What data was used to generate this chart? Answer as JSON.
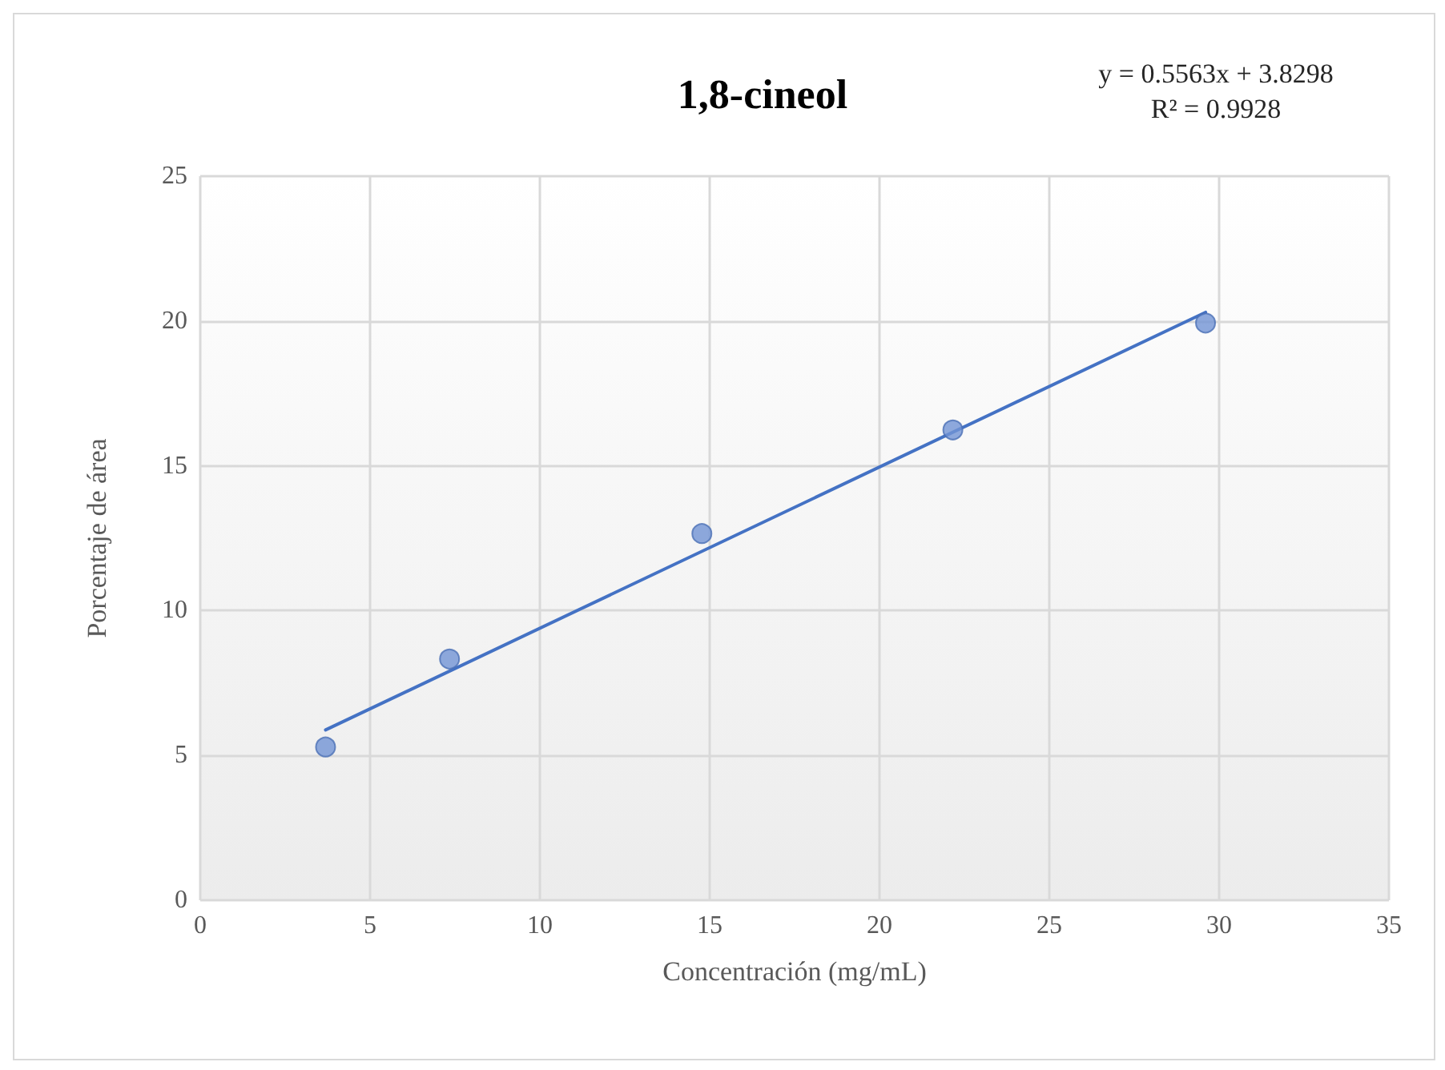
{
  "chart_data": {
    "type": "scatter",
    "title": "1,8-cineol",
    "xlabel": "Concentración (mg/mL)",
    "ylabel": "Porcentaje de área",
    "annotations": [
      "y = 0.5563x + 3.8298\nR² = 0.9928"
    ],
    "series": [
      {
        "type": "scatter",
        "color": "#7294d4",
        "x": [
          3.69,
          7.34,
          14.77,
          22.16,
          29.6
        ],
        "values": [
          5.29,
          8.33,
          12.66,
          16.24,
          19.93
        ],
        "marker": "circle"
      },
      {
        "type": "line",
        "color": "#4472c4",
        "x": [
          3.69,
          29.6
        ],
        "values": [
          5.88,
          20.3
        ],
        "line_style": "solid",
        "marker": "none"
      }
    ],
    "xlim": [
      0,
      35
    ],
    "xticks": [
      0,
      5,
      10,
      15,
      20,
      25,
      30,
      35
    ],
    "ylim": [
      0,
      25
    ],
    "yticks": [
      0,
      5,
      10,
      15,
      20,
      25
    ],
    "grid": true
  }
}
